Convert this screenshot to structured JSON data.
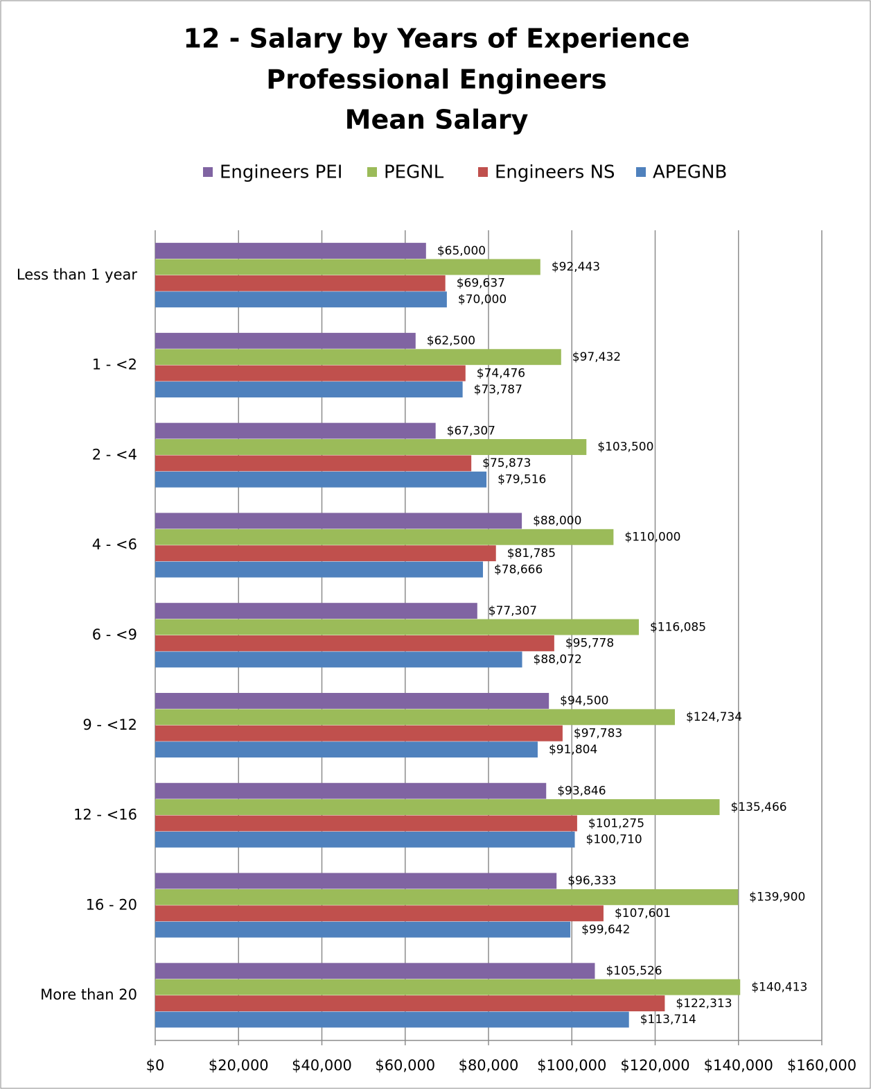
{
  "chart_data": {
    "type": "hbar",
    "title": [
      "12 - Salary by Years of Experience",
      "Professional Engineers",
      "Mean Salary"
    ],
    "categories": [
      "Less than 1 year",
      "1 - <2",
      "2 - <4",
      "4 - <6",
      "6 - <9",
      "9 - <12",
      "12 - <16",
      "16 - 20",
      "More than 20"
    ],
    "series": [
      {
        "name": "Engineers PEI",
        "color": "#8064a2",
        "values": [
          65000,
          62500,
          67307,
          88000,
          77307,
          94500,
          93846,
          96333,
          105526
        ],
        "value_labels": [
          "$65,000",
          "$62,500",
          "$67,307",
          "$88,000",
          "$77,307",
          "$94,500",
          "$93,846",
          "$96,333",
          "$105,526"
        ]
      },
      {
        "name": "PEGNL",
        "color": "#9bbb59",
        "values": [
          92443,
          97432,
          103500,
          110000,
          116085,
          124734,
          135466,
          139900,
          140413
        ],
        "value_labels": [
          "$92,443",
          "$97,432",
          "$103,500",
          "$110,000",
          "$116,085",
          "$124,734",
          "$135,466",
          "$139,900",
          "$140,413"
        ]
      },
      {
        "name": "Engineers NS",
        "color": "#c0504d",
        "values": [
          69637,
          74476,
          75873,
          81785,
          95778,
          97783,
          101275,
          107601,
          122313
        ],
        "value_labels": [
          "$69,637",
          "$74,476",
          "$75,873",
          "$81,785",
          "$95,778",
          "$97,783",
          "$101,275",
          "$107,601",
          "$122,313"
        ]
      },
      {
        "name": "APEGNB",
        "color": "#4f81bd",
        "values": [
          70000,
          73787,
          79516,
          78666,
          88072,
          91804,
          100710,
          99642,
          113714
        ],
        "value_labels": [
          "$70,000",
          "$73,787",
          "$79,516",
          "$78,666",
          "$88,072",
          "$91,804",
          "$100,710",
          "$99,642",
          "$113,714"
        ]
      }
    ],
    "xlim": [
      0,
      160000
    ],
    "xticks": [
      {
        "value": 0,
        "label": "$0"
      },
      {
        "value": 20000,
        "label": "$20,000"
      },
      {
        "value": 40000,
        "label": "$40,000"
      },
      {
        "value": 60000,
        "label": "$60,000"
      },
      {
        "value": 80000,
        "label": "$80,000"
      },
      {
        "value": 100000,
        "label": "$100,000"
      },
      {
        "value": 120000,
        "label": "$120,000"
      },
      {
        "value": 140000,
        "label": "$140,000"
      },
      {
        "value": 160000,
        "label": "$160,000"
      }
    ],
    "grid": true,
    "legend": "top"
  }
}
